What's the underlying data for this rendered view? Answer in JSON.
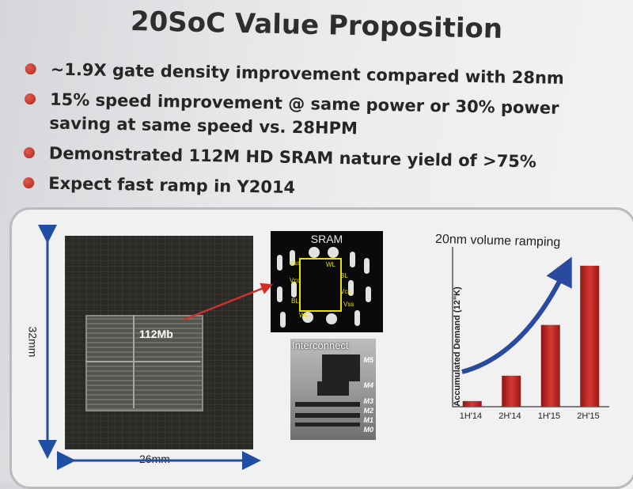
{
  "title": "20SoC Value Proposition",
  "bullets": [
    "~1.9X gate density improvement compared with 28nm",
    "15% speed improvement @ same power or 30% power saving at same speed vs. 28HPM",
    "Demonstrated 112M HD SRAM nature yield of >75%",
    "Expect fast ramp in Y2014"
  ],
  "die": {
    "block_label": "112Mb",
    "height_label": "32mm",
    "width_label": "26mm"
  },
  "sram": {
    "title": "SRAM",
    "cell_labels": [
      "Vss",
      "Vcc",
      "BL",
      "BL",
      "Vcc",
      "Vss",
      "WL",
      "WL"
    ]
  },
  "interconnect": {
    "title": "Interconnect",
    "layers": [
      "M5",
      "M4",
      "M3",
      "M2",
      "M1",
      "M0"
    ]
  },
  "colors": {
    "bullet": "#c0392b",
    "arrow": "#2a4aa0",
    "bar": "#c62828",
    "die_arrow": "#1f4fa3"
  },
  "chart_data": {
    "type": "bar",
    "title": "20nm volume ramping",
    "ylabel": "Accumulated  Demand (12\"K)",
    "xlabel": "",
    "categories": [
      "1H'14",
      "2H'14",
      "1H'15",
      "2H'15"
    ],
    "values": [
      4,
      22,
      58,
      100
    ],
    "ylim": [
      0,
      110
    ],
    "annotation": "upward trend arrow"
  }
}
